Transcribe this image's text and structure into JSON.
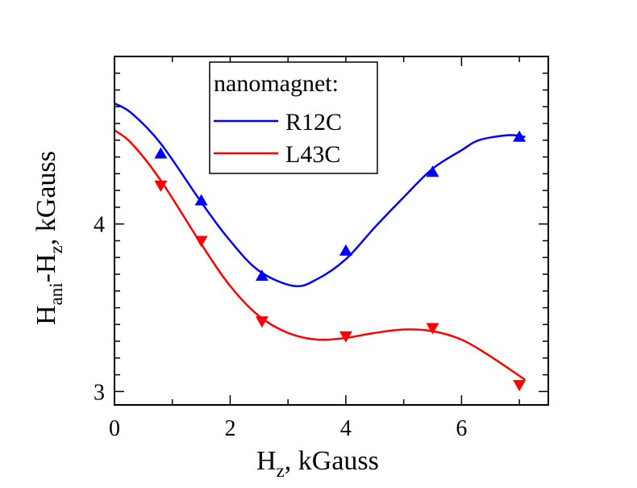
{
  "chart_data": {
    "type": "scatter",
    "xlabel": {
      "main": "H",
      "sub": "z",
      "rest": ", kGauss"
    },
    "ylabel": {
      "h1": "H",
      "sub1": "ani",
      "mid": "-H",
      "sub2": "z",
      "rest": ", kGauss"
    },
    "xlim": [
      0,
      7.5
    ],
    "ylim": [
      2.92,
      5.0
    ],
    "x_ticks": [
      0,
      2,
      4,
      6
    ],
    "x_tick_labels": [
      "0",
      "2",
      "4",
      "6"
    ],
    "y_ticks": [
      3,
      4
    ],
    "y_tick_labels": [
      "3",
      "4"
    ],
    "grid": false,
    "legend": {
      "title": "nanomagnet:",
      "placement": "top-center",
      "entries": [
        "R12C",
        "L43C"
      ]
    },
    "series": [
      {
        "name": "R12C",
        "color": "#0000ff",
        "marker": "triangle-up",
        "points": [
          {
            "x": 0.8,
            "y": 4.42
          },
          {
            "x": 1.5,
            "y": 4.14
          },
          {
            "x": 2.55,
            "y": 3.69
          },
          {
            "x": 4.0,
            "y": 3.84
          },
          {
            "x": 5.5,
            "y": 4.31
          },
          {
            "x": 7.0,
            "y": 4.52
          }
        ],
        "curve": [
          {
            "x": 0.0,
            "y": 4.72
          },
          {
            "x": 0.3,
            "y": 4.66
          },
          {
            "x": 0.8,
            "y": 4.48
          },
          {
            "x": 1.5,
            "y": 4.13
          },
          {
            "x": 2.0,
            "y": 3.9
          },
          {
            "x": 2.5,
            "y": 3.72
          },
          {
            "x": 3.1,
            "y": 3.63
          },
          {
            "x": 3.5,
            "y": 3.67
          },
          {
            "x": 4.0,
            "y": 3.79
          },
          {
            "x": 4.5,
            "y": 3.98
          },
          {
            "x": 5.0,
            "y": 4.16
          },
          {
            "x": 5.5,
            "y": 4.33
          },
          {
            "x": 6.0,
            "y": 4.44
          },
          {
            "x": 6.3,
            "y": 4.5
          },
          {
            "x": 6.8,
            "y": 4.53
          },
          {
            "x": 7.1,
            "y": 4.52
          }
        ]
      },
      {
        "name": "L43C",
        "color": "#ff0000",
        "marker": "triangle-down",
        "points": [
          {
            "x": 0.8,
            "y": 4.23
          },
          {
            "x": 1.5,
            "y": 3.9
          },
          {
            "x": 2.55,
            "y": 3.42
          },
          {
            "x": 4.0,
            "y": 3.33
          },
          {
            "x": 5.5,
            "y": 3.38
          },
          {
            "x": 7.0,
            "y": 3.04
          }
        ],
        "curve": [
          {
            "x": 0.0,
            "y": 4.56
          },
          {
            "x": 0.3,
            "y": 4.48
          },
          {
            "x": 0.8,
            "y": 4.26
          },
          {
            "x": 1.5,
            "y": 3.88
          },
          {
            "x": 2.0,
            "y": 3.63
          },
          {
            "x": 2.5,
            "y": 3.45
          },
          {
            "x": 3.0,
            "y": 3.35
          },
          {
            "x": 3.5,
            "y": 3.31
          },
          {
            "x": 4.0,
            "y": 3.32
          },
          {
            "x": 4.5,
            "y": 3.35
          },
          {
            "x": 5.0,
            "y": 3.37
          },
          {
            "x": 5.5,
            "y": 3.36
          },
          {
            "x": 6.0,
            "y": 3.31
          },
          {
            "x": 6.5,
            "y": 3.21
          },
          {
            "x": 7.1,
            "y": 3.07
          }
        ]
      }
    ]
  }
}
